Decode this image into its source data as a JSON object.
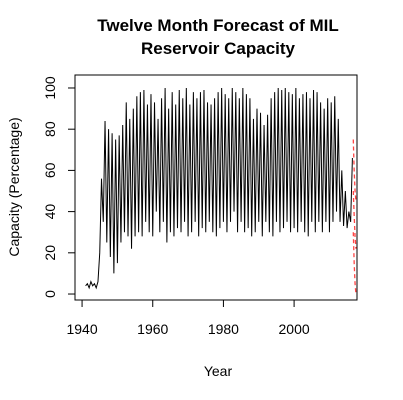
{
  "chart_data": {
    "type": "line",
    "title": [
      "Twelve Month Forecast of MIL",
      "Reservoir Capacity"
    ],
    "xlabel": "Year",
    "ylabel": "Capacity (Percentage)",
    "color": "#000000",
    "x": [
      1941,
      1941.5,
      1942,
      1942.5,
      1943,
      1943.5,
      1944,
      1944.5,
      1945,
      1945.5,
      1946,
      1946.5,
      1947,
      1947.5,
      1948,
      1948.5,
      1949,
      1949.5,
      1950,
      1950.5,
      1951,
      1951.5,
      1952,
      1952.5,
      1953,
      1953.5,
      1954,
      1954.5,
      1955,
      1955.5,
      1956,
      1956.5,
      1957,
      1957.5,
      1958,
      1958.5,
      1959,
      1959.5,
      1960,
      1960.5,
      1961,
      1961.5,
      1962,
      1962.5,
      1963,
      1963.5,
      1964,
      1964.5,
      1965,
      1965.5,
      1966,
      1966.5,
      1967,
      1967.5,
      1968,
      1968.5,
      1969,
      1969.5,
      1970,
      1970.5,
      1971,
      1971.5,
      1972,
      1972.5,
      1973,
      1973.5,
      1974,
      1974.5,
      1975,
      1975.5,
      1976,
      1976.5,
      1977,
      1977.5,
      1978,
      1978.5,
      1979,
      1979.5,
      1980,
      1980.5,
      1981,
      1981.5,
      1982,
      1982.5,
      1983,
      1983.5,
      1984,
      1984.5,
      1985,
      1985.5,
      1986,
      1986.5,
      1987,
      1987.5,
      1988,
      1988.5,
      1989,
      1989.5,
      1990,
      1990.5,
      1991,
      1991.5,
      1992,
      1992.5,
      1993,
      1993.5,
      1994,
      1994.5,
      1995,
      1995.5,
      1996,
      1996.5,
      1997,
      1997.5,
      1998,
      1998.5,
      1999,
      1999.5,
      2000,
      2000.5,
      2001,
      2001.5,
      2002,
      2002.5,
      2003,
      2003.5,
      2004,
      2004.5,
      2005,
      2005.5,
      2006,
      2006.5,
      2007,
      2007.5,
      2008,
      2008.5,
      2009,
      2009.5,
      2010,
      2010.5,
      2011,
      2011.5,
      2012,
      2012.5,
      2013,
      2013.5,
      2014,
      2014.5,
      2015,
      2015.5,
      2016,
      2016.5
    ],
    "values": [
      4,
      5,
      3,
      6,
      4,
      5,
      3,
      6,
      20,
      56,
      35,
      84,
      25,
      80,
      18,
      78,
      10,
      75,
      15,
      77,
      25,
      82,
      30,
      93,
      28,
      85,
      22,
      90,
      28,
      96,
      30,
      98,
      28,
      99,
      35,
      92,
      30,
      97,
      28,
      93,
      40,
      85,
      30,
      95,
      35,
      100,
      25,
      90,
      30,
      98,
      28,
      92,
      32,
      99,
      30,
      95,
      35,
      100,
      28,
      92,
      30,
      98,
      35,
      95,
      28,
      98,
      32,
      99,
      30,
      93,
      35,
      92,
      30,
      95,
      28,
      98,
      32,
      100,
      35,
      97,
      30,
      95,
      35,
      100,
      40,
      98,
      30,
      95,
      35,
      100,
      30,
      97,
      32,
      95,
      28,
      85,
      30,
      90,
      35,
      88,
      28,
      82,
      35,
      87,
      30,
      95,
      28,
      98,
      35,
      100,
      30,
      99,
      32,
      100,
      35,
      98,
      30,
      97,
      32,
      100,
      30,
      95,
      35,
      97,
      30,
      98,
      28,
      95,
      35,
      99,
      30,
      98,
      35,
      93,
      30,
      90,
      35,
      95,
      30,
      93,
      35,
      96,
      40,
      85,
      35,
      60,
      33,
      50,
      32,
      40,
      35,
      66
    ],
    "forecast": {
      "color": "#ff4444",
      "dashed": true,
      "x": [
        2016.75,
        2017.0,
        2017.25,
        2017.5
      ],
      "series": [
        {
          "values": [
            75,
            60,
            50,
            45
          ]
        },
        {
          "values": [
            50,
            38,
            28,
            22
          ]
        },
        {
          "values": [
            30,
            15,
            5,
            0
          ]
        }
      ]
    },
    "xlim": [
      1938.0,
      2017.8
    ],
    "ylim": [
      -2.9,
      106.3
    ],
    "xticks": [
      1940,
      1960,
      1980,
      2000
    ],
    "yticks": [
      0,
      20,
      40,
      60,
      80,
      100
    ]
  }
}
